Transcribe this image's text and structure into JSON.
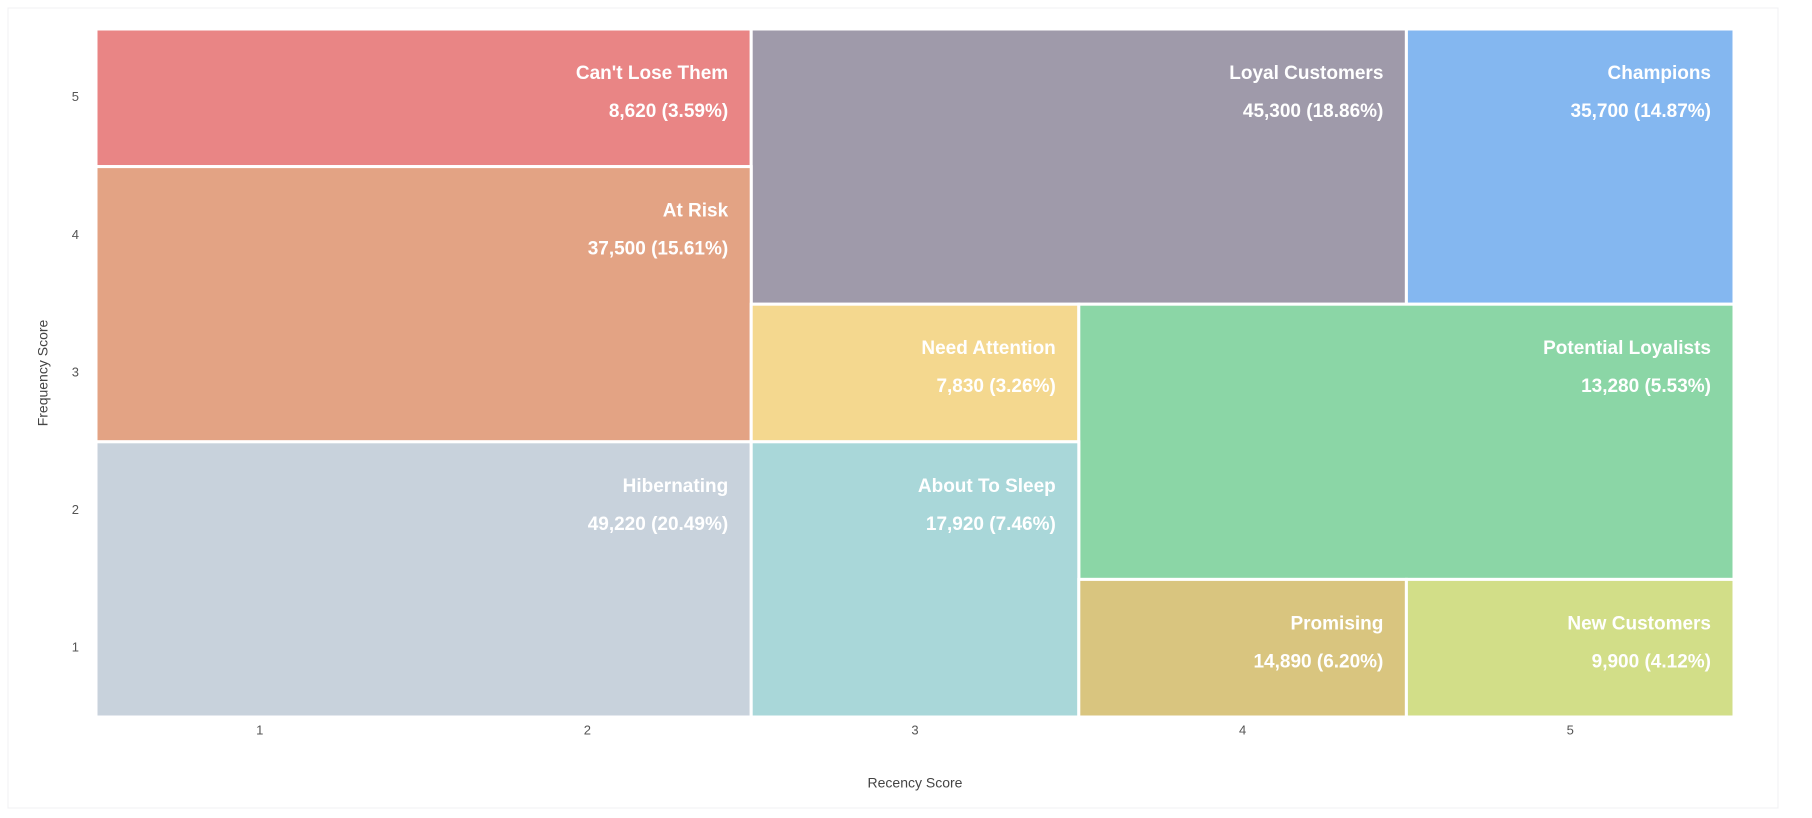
{
  "chart_data": {
    "type": "segment-grid",
    "x_label": "Recency Score",
    "y_label": "Frequency Score",
    "xlim": [
      0.5,
      5.5
    ],
    "ylim": [
      0.5,
      5.5
    ],
    "xticks": [
      1,
      2,
      3,
      4,
      5
    ],
    "yticks": [
      1,
      2,
      3,
      4,
      5
    ],
    "series": [
      {
        "name": "Can't Lose Them",
        "color": "#e98585",
        "x_range": [
          0.5,
          2.5
        ],
        "y_range": [
          4.5,
          5.5
        ],
        "value": 8620,
        "value_label": "8,620 (3.59%)"
      },
      {
        "name": "Loyal Customers",
        "color": "#9f9aaa",
        "x_range": [
          2.5,
          4.5
        ],
        "y_range": [
          3.5,
          5.5
        ],
        "value": 45300,
        "value_label": "45,300 (18.86%)"
      },
      {
        "name": "Champions",
        "color": "#84b7f0",
        "x_range": [
          4.5,
          5.5
        ],
        "y_range": [
          3.5,
          5.5
        ],
        "value": 35700,
        "value_label": "35,700 (14.87%)"
      },
      {
        "name": "At Risk",
        "color": "#e3a384",
        "x_range": [
          0.5,
          2.5
        ],
        "y_range": [
          2.5,
          4.5
        ],
        "value": 37500,
        "value_label": "37,500 (15.61%)"
      },
      {
        "name": "Need Attention",
        "color": "#f4d88f",
        "x_range": [
          2.5,
          3.5
        ],
        "y_range": [
          2.5,
          3.5
        ],
        "value": 7830,
        "value_label": "7,830 (3.26%)"
      },
      {
        "name": "Potential Loyalists",
        "color": "#8bd6a6",
        "x_range": [
          3.5,
          5.5
        ],
        "y_range": [
          1.5,
          3.5
        ],
        "value": 13280,
        "value_label": "13,280 (5.53%)"
      },
      {
        "name": "Hibernating",
        "color": "#c8d2dc",
        "x_range": [
          0.5,
          2.5
        ],
        "y_range": [
          0.5,
          2.5
        ],
        "value": 49220,
        "value_label": "49,220 (20.49%)"
      },
      {
        "name": "About To Sleep",
        "color": "#a9d7d9",
        "x_range": [
          2.5,
          3.5
        ],
        "y_range": [
          0.5,
          2.5
        ],
        "value": 17920,
        "value_label": "17,920 (7.46%)"
      },
      {
        "name": "Promising",
        "color": "#d9c57f",
        "x_range": [
          3.5,
          4.5
        ],
        "y_range": [
          0.5,
          1.5
        ],
        "value": 14890,
        "value_label": "14,890 (6.20%)"
      },
      {
        "name": "New Customers",
        "color": "#d2de88",
        "x_range": [
          4.5,
          5.5
        ],
        "y_range": [
          0.5,
          1.5
        ],
        "value": 9900,
        "value_label": "9,900 (4.12%)"
      }
    ]
  }
}
